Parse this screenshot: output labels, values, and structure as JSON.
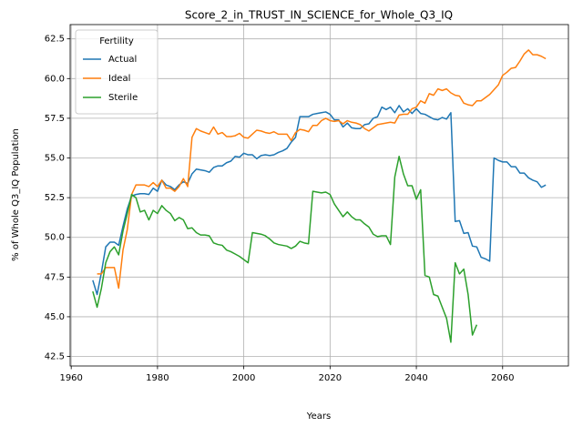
{
  "chart_data": {
    "type": "line",
    "title": "Score_2_in_TRUST_IN_SCIENCE_for_Whole_Q3_IQ",
    "xlabel": "Years",
    "ylabel": "% of Whole Q3_IQ Population",
    "legend_title": "Fertility",
    "legend": "upper left",
    "grid": true,
    "xlim": [
      1959.75,
      2075.25
    ],
    "ylim": [
      41.9,
      63.4
    ],
    "xticks": [
      1960,
      1980,
      2000,
      2020,
      2040,
      2060
    ],
    "yticks": [
      42.5,
      {
        "value": 45,
        "label": "45.0"
      },
      47.5,
      {
        "value": 50,
        "label": "50.0"
      },
      52.5,
      {
        "value": 55,
        "label": "55.0"
      },
      57.5,
      {
        "value": 60,
        "label": "60.0"
      },
      62.5
    ],
    "x": [
      1965,
      1966,
      1967,
      1968,
      1969,
      1970,
      1971,
      1972,
      1973,
      1974,
      1975,
      1976,
      1977,
      1978,
      1979,
      1980,
      1981,
      1982,
      1983,
      1984,
      1985,
      1986,
      1987,
      1988,
      1989,
      1990,
      1991,
      1992,
      1993,
      1994,
      1995,
      1996,
      1997,
      1998,
      1999,
      2000,
      2001,
      2002,
      2003,
      2004,
      2005,
      2006,
      2007,
      2008,
      2009,
      2010,
      2011,
      2012,
      2013,
      2014,
      2015,
      2016,
      2017,
      2018,
      2019,
      2020,
      2021,
      2022,
      2023,
      2024,
      2025,
      2026,
      2027,
      2028,
      2029,
      2030,
      2031,
      2032,
      2033,
      2034,
      2035,
      2036,
      2037,
      2038,
      2039,
      2040,
      2041,
      2042,
      2043,
      2044,
      2045,
      2046,
      2047,
      2048,
      2049,
      2050,
      2051,
      2052,
      2053,
      2054,
      2055,
      2056,
      2057,
      2058,
      2059,
      2060,
      2061,
      2062,
      2063,
      2064,
      2065,
      2066,
      2067,
      2068,
      2069,
      2070
    ],
    "series": [
      {
        "name": "Actual",
        "color": "#1f77b4",
        "values": [
          47.3,
          46.4,
          47.8,
          49.4,
          49.7,
          49.7,
          49.5,
          50.7,
          51.8,
          52.6,
          52.7,
          52.75,
          52.75,
          52.7,
          53.1,
          52.9,
          53.6,
          53.3,
          53.2,
          53.0,
          53.3,
          53.5,
          53.4,
          54.0,
          54.3,
          54.25,
          54.2,
          54.1,
          54.4,
          54.5,
          54.5,
          54.7,
          54.8,
          55.1,
          55.05,
          55.3,
          55.2,
          55.2,
          54.95,
          55.15,
          55.2,
          55.15,
          55.2,
          55.35,
          55.45,
          55.6,
          56.0,
          56.3,
          57.6,
          57.6,
          57.6,
          57.75,
          57.8,
          57.85,
          57.9,
          57.75,
          57.4,
          57.4,
          56.95,
          57.2,
          56.9,
          56.85,
          56.85,
          57.1,
          57.15,
          57.5,
          57.6,
          58.2,
          58.05,
          58.2,
          57.85,
          58.3,
          57.9,
          58.1,
          57.8,
          58.1,
          57.8,
          57.75,
          57.6,
          57.45,
          57.4,
          57.55,
          57.45,
          57.85,
          51.0,
          51.05,
          50.25,
          50.3,
          49.45,
          49.4,
          48.75,
          48.65,
          48.5,
          55.0,
          54.85,
          54.75,
          54.75,
          54.45,
          54.45,
          54.05,
          54.05,
          53.75,
          53.6,
          53.5,
          53.15,
          53.3
        ]
      },
      {
        "name": "Ideal",
        "color": "#ff7f0e",
        "values": [
          null,
          47.7,
          47.7,
          48.1,
          48.1,
          48.1,
          46.8,
          49.2,
          50.5,
          52.7,
          53.3,
          53.3,
          53.3,
          53.2,
          53.45,
          53.2,
          53.6,
          53.1,
          53.1,
          52.9,
          53.2,
          53.7,
          53.2,
          56.3,
          56.85,
          56.7,
          56.6,
          56.5,
          56.95,
          56.5,
          56.6,
          56.35,
          56.35,
          56.4,
          56.55,
          56.3,
          56.25,
          56.5,
          56.75,
          56.7,
          56.6,
          56.55,
          56.65,
          56.5,
          56.5,
          56.5,
          56.1,
          56.6,
          56.8,
          56.75,
          56.65,
          57.05,
          57.05,
          57.35,
          57.5,
          57.35,
          57.3,
          57.35,
          57.15,
          57.35,
          57.25,
          57.2,
          57.1,
          56.85,
          56.7,
          56.9,
          57.1,
          57.15,
          57.2,
          57.25,
          57.2,
          57.7,
          57.75,
          57.75,
          58.1,
          58.2,
          58.6,
          58.45,
          59.05,
          58.95,
          59.35,
          59.25,
          59.35,
          59.1,
          58.95,
          58.9,
          58.45,
          58.35,
          58.3,
          58.6,
          58.6,
          58.8,
          59.0,
          59.3,
          59.6,
          60.2,
          60.4,
          60.65,
          60.7,
          61.1,
          61.55,
          61.8,
          61.5,
          61.5,
          61.4,
          61.25
        ]
      },
      {
        "name": "Sterile",
        "color": "#2ca02c",
        "values": [
          46.6,
          45.6,
          46.8,
          48.4,
          49.1,
          49.4,
          48.9,
          50.4,
          51.5,
          52.7,
          52.5,
          51.6,
          51.7,
          51.1,
          51.7,
          51.5,
          52.0,
          51.7,
          51.5,
          51.05,
          51.25,
          51.1,
          50.55,
          50.6,
          50.3,
          50.15,
          50.15,
          50.1,
          49.65,
          49.55,
          49.5,
          49.2,
          49.1,
          48.95,
          48.8,
          48.6,
          48.4,
          50.3,
          50.25,
          50.2,
          50.1,
          49.9,
          49.65,
          49.55,
          49.5,
          49.45,
          49.3,
          49.45,
          49.75,
          49.65,
          49.6,
          52.9,
          52.85,
          52.8,
          52.85,
          52.7,
          52.1,
          51.7,
          51.3,
          51.6,
          51.3,
          51.1,
          51.1,
          50.85,
          50.65,
          50.2,
          50.05,
          50.1,
          50.1,
          49.55,
          53.8,
          55.1,
          54.0,
          53.25,
          53.25,
          52.4,
          53.0,
          47.6,
          47.5,
          46.4,
          46.3,
          45.6,
          44.9,
          43.4,
          48.4,
          47.7,
          48.0,
          46.4,
          43.85,
          44.5,
          null,
          null,
          null,
          null,
          null,
          null,
          null,
          null,
          null,
          null,
          null,
          null,
          null,
          null,
          null,
          null
        ]
      }
    ]
  }
}
